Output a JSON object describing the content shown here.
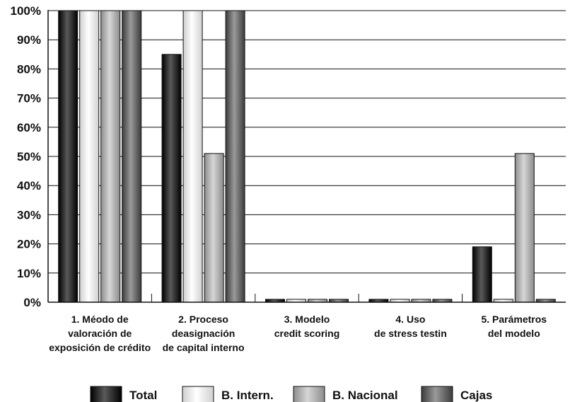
{
  "chart_data": {
    "type": "bar",
    "title": "",
    "xlabel": "",
    "ylabel": "",
    "ylim": [
      0,
      100
    ],
    "yticks": [
      "0%",
      "10%",
      "20%",
      "30%",
      "40%",
      "50%",
      "60%",
      "70%",
      "80%",
      "90%",
      "100%"
    ],
    "grid": true,
    "legend_position": "bottom",
    "categories": [
      [
        "1. Méodo de",
        "valoración de",
        "exposición de crédito"
      ],
      [
        "2. Proceso",
        "deasignación",
        "de capital interno"
      ],
      [
        "3. Modelo",
        "credit scoring"
      ],
      [
        "4. Uso",
        "de stress testin"
      ],
      [
        "5. Parámetros",
        "del modelo"
      ]
    ],
    "series": [
      {
        "name": "Total",
        "color": "#1a1a1a",
        "values": [
          100,
          85,
          1,
          1,
          19
        ]
      },
      {
        "name": "B. Intern.",
        "color": "#e6e6e6",
        "values": [
          100,
          100,
          1,
          1,
          1
        ]
      },
      {
        "name": "B. Nacional",
        "color": "#b3b3b3",
        "values": [
          100,
          51,
          1,
          1,
          51
        ]
      },
      {
        "name": "Cajas",
        "color": "#6e6e6e",
        "values": [
          100,
          100,
          1,
          1,
          1
        ]
      }
    ]
  }
}
